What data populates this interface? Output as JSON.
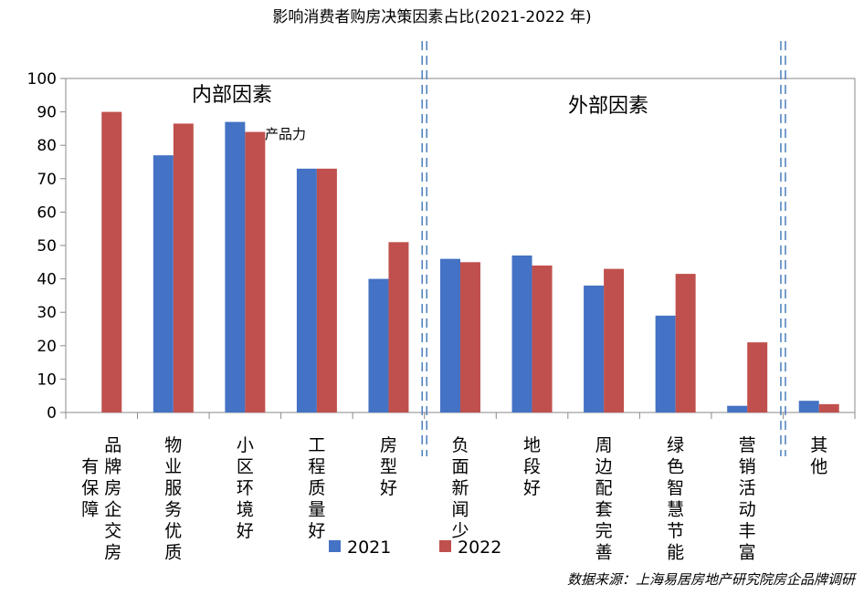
{
  "chart_data": {
    "type": "bar",
    "title": "影响消费者购房决策因素占比(2021-2022 年)",
    "xlabel": "",
    "ylabel": "",
    "ylim": [
      0,
      100
    ],
    "yticks": [
      "0",
      "10",
      "20",
      "30",
      "40",
      "50",
      "60",
      "70",
      "80",
      "90",
      "100"
    ],
    "categories": [
      "品牌房企交房有保障",
      "物业服务优质",
      "小区环境好",
      "工程质量好",
      "房型好",
      "负面新闻少",
      "地段好",
      "周边配套完善",
      "绿色智慧节能",
      "营销活动丰富",
      "其他"
    ],
    "category_columns": [
      [
        "品牌房企交房",
        "有保障"
      ],
      [
        "物业服务优质"
      ],
      [
        "小区环境好"
      ],
      [
        "工程质量好"
      ],
      [
        "房型好"
      ],
      [
        "负面新闻少"
      ],
      [
        "地段好"
      ],
      [
        "周边配套完善"
      ],
      [
        "绿色智慧节能"
      ],
      [
        "营销活动丰富"
      ],
      [
        "其他"
      ]
    ],
    "series": [
      {
        "name": "2021",
        "values": [
          0,
          77,
          87,
          73,
          40,
          46,
          47,
          38,
          29,
          2,
          3.5
        ]
      },
      {
        "name": "2022",
        "values": [
          90,
          86.5,
          84,
          73,
          51,
          45,
          44,
          43,
          41.5,
          21,
          2.5
        ]
      }
    ],
    "groups": [
      "内部因素",
      "外部因素"
    ],
    "annotations": [
      "产品力"
    ],
    "source": "数据来源：上海易居房地产研究院房企品牌调研",
    "colors": {
      "2021": "#4472c4",
      "2022": "#c0504d",
      "divider": "#4a7ebb"
    }
  }
}
